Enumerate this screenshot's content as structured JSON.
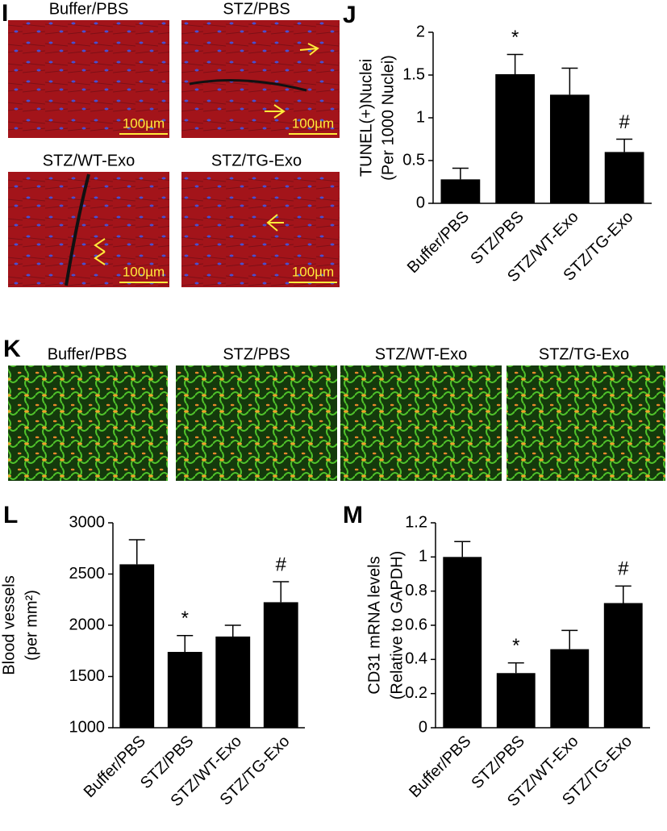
{
  "figure": {
    "panel_I": {
      "letter": "I",
      "images": [
        {
          "label": "Buffer/PBS",
          "scale": "100µm"
        },
        {
          "label": "STZ/PBS",
          "scale": "100µm"
        },
        {
          "label": "STZ/WT-Exo",
          "scale": "100µm"
        },
        {
          "label": "STZ/TG-Exo",
          "scale": "100µm"
        }
      ]
    },
    "panel_K": {
      "letter": "K",
      "images": [
        {
          "label": "Buffer/PBS"
        },
        {
          "label": "STZ/PBS"
        },
        {
          "label": "STZ/WT-Exo"
        },
        {
          "label": "STZ/TG-Exo"
        }
      ]
    }
  },
  "chart_data": [
    {
      "type": "bar",
      "letter": "J",
      "ylabel": [
        "TUNEL(+)Nuclei",
        "(Per 1000 Nuclei)"
      ],
      "categories": [
        "Buffer/PBS",
        "STZ/PBS",
        "STZ/WT-Exo",
        "STZ/TG-Exo"
      ],
      "values": [
        0.28,
        1.51,
        1.27,
        0.6
      ],
      "errors": [
        0.13,
        0.23,
        0.31,
        0.15
      ],
      "markers": [
        null,
        "*",
        null,
        "#"
      ],
      "color": "#000000",
      "ylim": [
        0,
        2
      ],
      "yticks": [
        0,
        0.5,
        1,
        1.5,
        2
      ]
    },
    {
      "type": "bar",
      "letter": "L",
      "ylabel": [
        "Blood vessels",
        "(per mm²)"
      ],
      "categories": [
        "Buffer/PBS",
        "STZ/PBS",
        "STZ/WT-Exo",
        "STZ/TG-Exo"
      ],
      "values": [
        2595,
        1740,
        1890,
        2225
      ],
      "errors": [
        240,
        160,
        110,
        200
      ],
      "markers": [
        null,
        "*",
        null,
        "#"
      ],
      "color": "#000000",
      "ylim": [
        1000,
        3000
      ],
      "yticks": [
        1000,
        1500,
        2000,
        2500,
        3000
      ]
    },
    {
      "type": "bar",
      "letter": "M",
      "ylabel": [
        "CD31 mRNA levels",
        "(Relative to GAPDH)"
      ],
      "categories": [
        "Buffer/PBS",
        "STZ/PBS",
        "STZ/WT-Exo",
        "STZ/TG-Exo"
      ],
      "values": [
        1.0,
        0.32,
        0.46,
        0.73
      ],
      "errors": [
        0.09,
        0.06,
        0.11,
        0.1
      ],
      "markers": [
        null,
        "*",
        null,
        "#"
      ],
      "color": "#000000",
      "ylim": [
        0,
        1.2
      ],
      "yticks": [
        0,
        0.2,
        0.4,
        0.6,
        0.8,
        1,
        1.2
      ]
    }
  ]
}
